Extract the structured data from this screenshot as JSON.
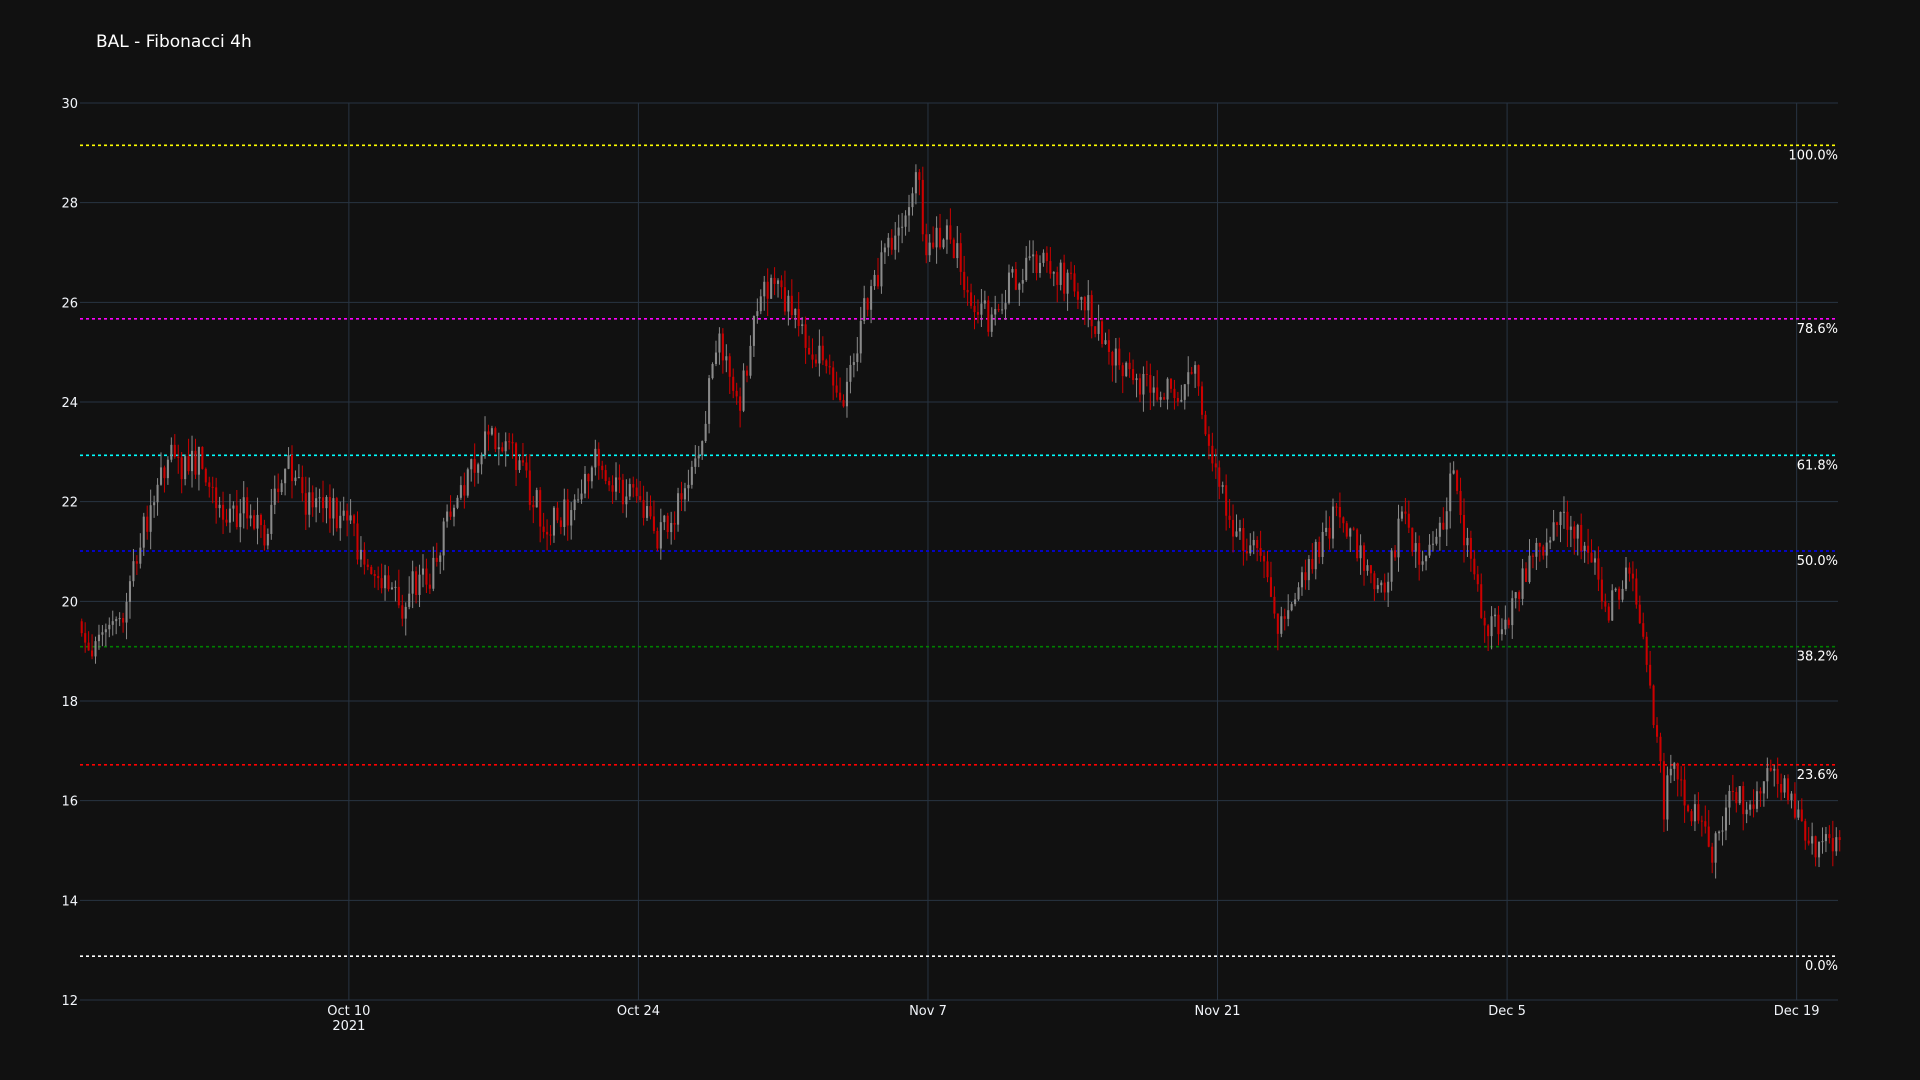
{
  "chart_data": {
    "type": "candlestick",
    "title": "BAL - Fibonacci 4h",
    "xlabel": "",
    "ylabel": "",
    "ylim": [
      12,
      30
    ],
    "xlim": [
      "2021-09-27",
      "2021-12-21"
    ],
    "grid": true,
    "colors": {
      "background": "#111111",
      "grid": "#283442",
      "text": "#f2f5fa",
      "increasing": "#8a8a8a",
      "decreasing": "#cc0000"
    },
    "y_ticks": [
      12,
      14,
      16,
      18,
      20,
      22,
      24,
      26,
      28,
      30
    ],
    "x_ticks": [
      {
        "date": "2021-10-10",
        "label": "Oct 10",
        "sublabel": "2021"
      },
      {
        "date": "2021-10-24",
        "label": "Oct 24",
        "sublabel": ""
      },
      {
        "date": "2021-11-07",
        "label": "Nov 7",
        "sublabel": ""
      },
      {
        "date": "2021-11-21",
        "label": "Nov 21",
        "sublabel": ""
      },
      {
        "date": "2021-12-05",
        "label": "Dec 5",
        "sublabel": ""
      },
      {
        "date": "2021-12-19",
        "label": "Dec 19",
        "sublabel": ""
      }
    ],
    "fib_levels": [
      {
        "label": "100.0%",
        "value": 29.15,
        "color": "#ffff00"
      },
      {
        "label": "78.6%",
        "value": 25.67,
        "color": "#ff00ff"
      },
      {
        "label": "61.8%",
        "value": 22.93,
        "color": "#00ffff"
      },
      {
        "label": "50.0%",
        "value": 21.01,
        "color": "#0000ff"
      },
      {
        "label": "38.2%",
        "value": 19.09,
        "color": "#008000"
      },
      {
        "label": "23.6%",
        "value": 16.72,
        "color": "#ff0000"
      },
      {
        "label": "0.0%",
        "value": 12.88,
        "color": "#ffffff"
      }
    ],
    "price_path": {
      "start": "2021-09-27T00:00",
      "interval_hours": 4,
      "anchors": [
        [
          "2021-09-27",
          19.6
        ],
        [
          "2021-09-27T16:00",
          18.7
        ],
        [
          "2021-09-28",
          19.5
        ],
        [
          "2021-09-29",
          19.6
        ],
        [
          "2021-09-30",
          21.2
        ],
        [
          "2021-10-01",
          22.5
        ],
        [
          "2021-10-01T12:00",
          23.1
        ],
        [
          "2021-10-02",
          22.6
        ],
        [
          "2021-10-03",
          22.9
        ],
        [
          "2021-10-03T12:00",
          22.0
        ],
        [
          "2021-10-04",
          21.7
        ],
        [
          "2021-10-05",
          21.8
        ],
        [
          "2021-10-06",
          21.3
        ],
        [
          "2021-10-07",
          22.8
        ],
        [
          "2021-10-08",
          22.0
        ],
        [
          "2021-10-09",
          21.9
        ],
        [
          "2021-10-10",
          21.6
        ],
        [
          "2021-10-11",
          20.6
        ],
        [
          "2021-10-12",
          20.5
        ],
        [
          "2021-10-12T16:00",
          19.8
        ],
        [
          "2021-10-13",
          20.3
        ],
        [
          "2021-10-14",
          20.4
        ],
        [
          "2021-10-15",
          21.8
        ],
        [
          "2021-10-16",
          22.7
        ],
        [
          "2021-10-17",
          23.4
        ],
        [
          "2021-10-18",
          22.9
        ],
        [
          "2021-10-19",
          22.1
        ],
        [
          "2021-10-19T12:00",
          21.6
        ],
        [
          "2021-10-20",
          21.6
        ],
        [
          "2021-10-21",
          21.9
        ],
        [
          "2021-10-22",
          23.0
        ],
        [
          "2021-10-23",
          22.2
        ],
        [
          "2021-10-24",
          22.3
        ],
        [
          "2021-10-25",
          21.2
        ],
        [
          "2021-10-26",
          21.9
        ],
        [
          "2021-10-27",
          23.1
        ],
        [
          "2021-10-28",
          25.3
        ],
        [
          "2021-10-29",
          24.0
        ],
        [
          "2021-10-30",
          26.4
        ],
        [
          "2021-10-31",
          26.2
        ],
        [
          "2021-11-01",
          25.3
        ],
        [
          "2021-11-02",
          24.9
        ],
        [
          "2021-11-03",
          24.1
        ],
        [
          "2021-11-04",
          25.8
        ],
        [
          "2021-11-05",
          26.9
        ],
        [
          "2021-11-06",
          27.6
        ],
        [
          "2021-11-06T12:00",
          28.8
        ],
        [
          "2021-11-07",
          27.0
        ],
        [
          "2021-11-08",
          27.6
        ],
        [
          "2021-11-09",
          26.3
        ],
        [
          "2021-11-10",
          25.7
        ],
        [
          "2021-11-11",
          26.3
        ],
        [
          "2021-11-12",
          26.9
        ],
        [
          "2021-11-13",
          26.6
        ],
        [
          "2021-11-14",
          26.4
        ],
        [
          "2021-11-15",
          25.8
        ],
        [
          "2021-11-16",
          24.9
        ],
        [
          "2021-11-17",
          24.3
        ],
        [
          "2021-11-18",
          24.3
        ],
        [
          "2021-11-19",
          24.2
        ],
        [
          "2021-11-20",
          24.5
        ],
        [
          "2021-11-21",
          22.5
        ],
        [
          "2021-11-22",
          21.3
        ],
        [
          "2021-11-23",
          21.1
        ],
        [
          "2021-11-24",
          19.4
        ],
        [
          "2021-11-25",
          20.5
        ],
        [
          "2021-11-26",
          21.1
        ],
        [
          "2021-11-27",
          21.9
        ],
        [
          "2021-11-28",
          20.9
        ],
        [
          "2021-11-29",
          20.1
        ],
        [
          "2021-11-30",
          21.7
        ],
        [
          "2021-12-01",
          20.6
        ],
        [
          "2021-12-02",
          21.5
        ],
        [
          "2021-12-02T12:00",
          22.7
        ],
        [
          "2021-12-03",
          21.3
        ],
        [
          "2021-12-04",
          19.5
        ],
        [
          "2021-12-05",
          19.4
        ],
        [
          "2021-12-06",
          20.6
        ],
        [
          "2021-12-07",
          21.3
        ],
        [
          "2021-12-08",
          21.6
        ],
        [
          "2021-12-09",
          20.9
        ],
        [
          "2021-12-10",
          19.9
        ],
        [
          "2021-12-11",
          20.6
        ],
        [
          "2021-12-12",
          18.3
        ],
        [
          "2021-12-12T16:00",
          15.9
        ],
        [
          "2021-12-13",
          16.7
        ],
        [
          "2021-12-14",
          15.8
        ],
        [
          "2021-12-15",
          14.9
        ],
        [
          "2021-12-16",
          16.1
        ],
        [
          "2021-12-17",
          15.9
        ],
        [
          "2021-12-18",
          16.6
        ],
        [
          "2021-12-19",
          15.7
        ],
        [
          "2021-12-20",
          15.1
        ],
        [
          "2021-12-21",
          15.0
        ]
      ]
    }
  }
}
